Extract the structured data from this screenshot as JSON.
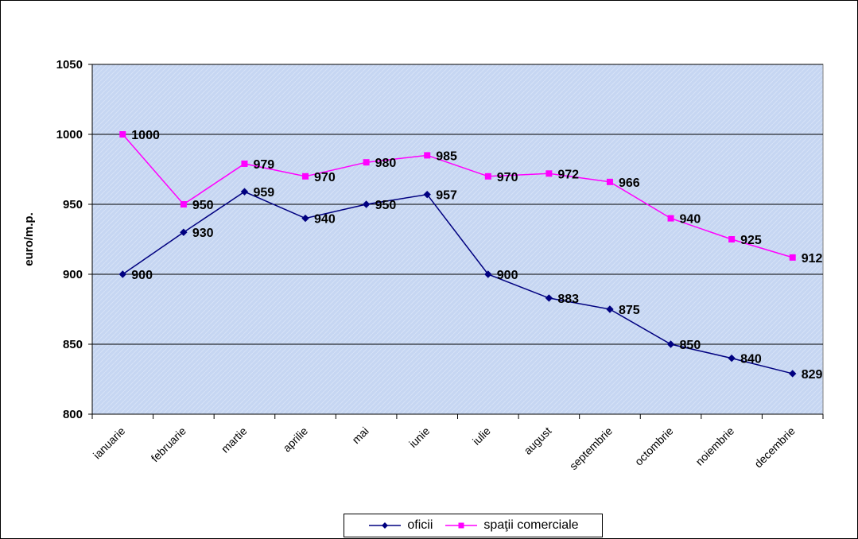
{
  "chart_data": {
    "type": "line",
    "title": "",
    "xlabel": "",
    "ylabel": "euro/m.p.",
    "categories": [
      "ianuarie",
      "februarie",
      "martie",
      "aprilie",
      "mai",
      "iunie",
      "iulie",
      "august",
      "septembrie",
      "octombrie",
      "noiembrie",
      "decembrie"
    ],
    "ylim": [
      800,
      1050
    ],
    "yticks": [
      "800",
      "850",
      "900",
      "950",
      "1000",
      "1050"
    ],
    "grid": true,
    "legend_position": "bottom",
    "series": [
      {
        "name": "oficii",
        "color": "#000080",
        "marker": "diamond",
        "values": [
          900,
          930,
          959,
          940,
          950,
          957,
          900,
          883,
          875,
          850,
          840,
          829
        ]
      },
      {
        "name": "spaţii comerciale",
        "color": "#ff00ff",
        "marker": "square",
        "values": [
          1000,
          950,
          979,
          970,
          980,
          985,
          970,
          972,
          966,
          940,
          925,
          912
        ]
      }
    ],
    "plot_background": "#c8d8f0"
  }
}
